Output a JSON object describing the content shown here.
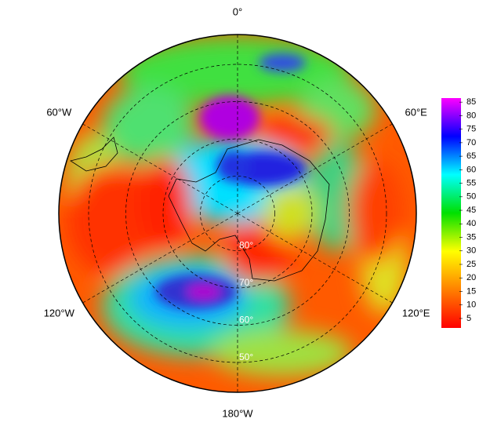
{
  "map": {
    "projection": "south-polar-stereographic",
    "extent_lat": 42,
    "meridians": [
      {
        "value": 0,
        "label": "0°"
      },
      {
        "value": 60,
        "label": "60°E"
      },
      {
        "value": 120,
        "label": "120°E"
      },
      {
        "value": 180,
        "label": "180°W"
      },
      {
        "value": -120,
        "label": "120°W"
      },
      {
        "value": -60,
        "label": "60°W"
      }
    ],
    "parallels": [
      {
        "value": 80,
        "label": "80°"
      },
      {
        "value": 70,
        "label": "70°"
      },
      {
        "value": 60,
        "label": "60°"
      },
      {
        "value": 50,
        "label": "50°"
      }
    ],
    "colorbar": {
      "lim": [
        1.5,
        86.5
      ],
      "ticks": [
        5,
        10,
        15,
        20,
        25,
        30,
        35,
        40,
        45,
        50,
        55,
        60,
        65,
        70,
        75,
        80,
        85
      ],
      "colors": [
        "#ff0000",
        "#ff8000",
        "#ffff00",
        "#00e000",
        "#00ffff",
        "#0000ff",
        "#ff00ff"
      ]
    }
  }
}
